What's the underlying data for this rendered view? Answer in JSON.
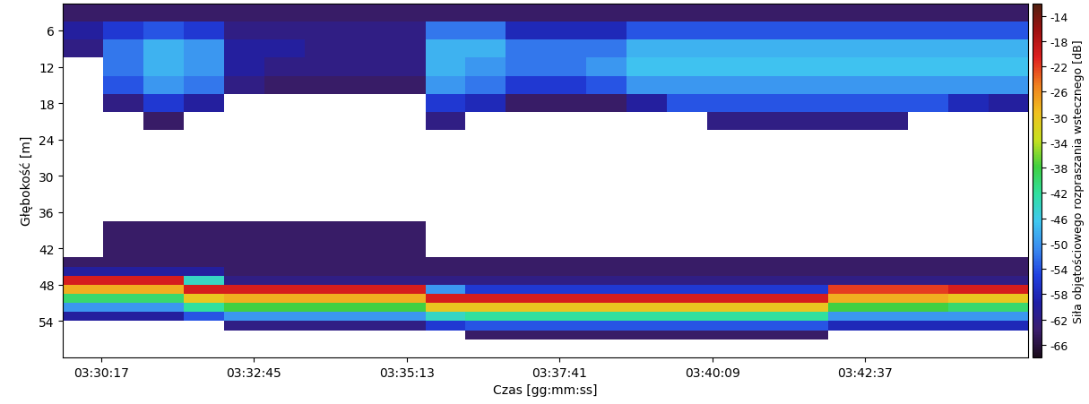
{
  "chart_data": {
    "type": "heatmap",
    "xlabel": "Czas [gg:mm:ss]",
    "ylabel": "Głębokość [m]",
    "colorbar_label": "Siła objętościowego rozpraszania wstecznego [dB]",
    "xlim": [
      12580,
      13515
    ],
    "ylim": [
      60,
      1.5
    ],
    "xticks": [
      {
        "value": 12617,
        "label": "03:30:17"
      },
      {
        "value": 12765,
        "label": "03:32:45"
      },
      {
        "value": 12913,
        "label": "03:35:13"
      },
      {
        "value": 13061,
        "label": "03:37:41"
      },
      {
        "value": 13209,
        "label": "03:40:09"
      },
      {
        "value": 13357,
        "label": "03:42:37"
      }
    ],
    "yticks": [
      6,
      12,
      18,
      24,
      30,
      36,
      42,
      48,
      54
    ],
    "colorbar_range": [
      -68,
      -12
    ],
    "colorbar_ticks": [
      -14,
      -18,
      -22,
      -26,
      -30,
      -34,
      -38,
      -42,
      -46,
      -50,
      -54,
      -58,
      -62,
      -66
    ],
    "x_edges": [
      12580,
      12619,
      12658,
      12697,
      12736,
      12775,
      12814,
      12853,
      12892,
      12931,
      12970,
      13009,
      13048,
      13087,
      13126,
      13165,
      13204,
      13243,
      13282,
      13321,
      13360,
      13399,
      13438,
      13477,
      13515
    ],
    "y_edges": [
      1.5,
      4.5,
      7.5,
      10.5,
      13.5,
      16.5,
      19.5,
      22.5,
      25.5,
      28.5,
      31.5,
      34.5,
      37.5,
      40.5,
      43.5,
      45,
      46.5,
      48,
      49.5,
      51,
      52.5,
      54,
      55.5,
      57,
      60
    ],
    "cells": [
      [
        -64,
        -64,
        -64,
        -64,
        -64,
        -64,
        -64,
        -64,
        -64,
        -64,
        -64,
        -64,
        -64,
        -64,
        -64,
        -64,
        -64,
        -64,
        -64,
        -64,
        -64,
        -64,
        -64,
        -64
      ],
      [
        -60,
        -56,
        -54,
        -56,
        -62,
        -62,
        -62,
        -62,
        -62,
        -52,
        -52,
        -58,
        -58,
        -58,
        -54,
        -54,
        -54,
        -54,
        -54,
        -54,
        -54,
        -54,
        -54,
        -54
      ],
      [
        -62,
        -52,
        -48,
        -50,
        -60,
        -60,
        -62,
        -62,
        -62,
        -48,
        -48,
        -52,
        -52,
        -52,
        -48,
        -48,
        -48,
        -48,
        -48,
        -48,
        -48,
        -48,
        -48,
        -48
      ],
      [
        null,
        -52,
        -48,
        -50,
        -60,
        -62,
        -62,
        -62,
        -62,
        -48,
        -50,
        -52,
        -52,
        -50,
        -47,
        -47,
        -47,
        -47,
        -47,
        -47,
        -47,
        -47,
        -47,
        -47
      ],
      [
        null,
        -54,
        -50,
        -52,
        -62,
        -64,
        -64,
        -64,
        -64,
        -50,
        -52,
        -56,
        -56,
        -54,
        -50,
        -50,
        -50,
        -50,
        -50,
        -50,
        -50,
        -50,
        -50,
        -50
      ],
      [
        null,
        -62,
        -56,
        -60,
        null,
        null,
        null,
        null,
        null,
        -56,
        -58,
        -64,
        -64,
        -64,
        -60,
        -54,
        -54,
        -54,
        -54,
        -54,
        -54,
        -54,
        -58,
        -60
      ],
      [
        null,
        null,
        -64,
        null,
        null,
        null,
        null,
        null,
        null,
        -62,
        null,
        null,
        null,
        null,
        null,
        null,
        -62,
        -62,
        -62,
        -62,
        -62,
        null,
        null,
        null
      ],
      [
        null,
        null,
        null,
        null,
        null,
        null,
        null,
        null,
        null,
        null,
        null,
        null,
        null,
        null,
        null,
        null,
        null,
        null,
        null,
        null,
        null,
        null,
        null,
        null
      ],
      [
        null,
        null,
        null,
        null,
        null,
        null,
        null,
        null,
        null,
        null,
        null,
        null,
        null,
        null,
        null,
        null,
        null,
        null,
        null,
        null,
        null,
        null,
        null,
        null
      ],
      [
        null,
        null,
        null,
        null,
        null,
        null,
        null,
        null,
        null,
        null,
        null,
        null,
        null,
        null,
        null,
        null,
        null,
        null,
        null,
        null,
        null,
        null,
        null,
        null
      ],
      [
        null,
        null,
        null,
        null,
        null,
        null,
        null,
        null,
        null,
        null,
        null,
        null,
        null,
        null,
        null,
        null,
        null,
        null,
        null,
        null,
        null,
        null,
        null,
        null
      ],
      [
        null,
        null,
        null,
        null,
        null,
        null,
        null,
        null,
        null,
        null,
        null,
        null,
        null,
        null,
        null,
        null,
        null,
        null,
        null,
        null,
        null,
        null,
        null,
        null
      ],
      [
        null,
        -64,
        -64,
        -64,
        -64,
        -64,
        -64,
        -64,
        -64,
        null,
        null,
        null,
        null,
        null,
        null,
        null,
        null,
        null,
        null,
        null,
        null,
        null,
        null,
        null
      ],
      [
        null,
        -64,
        -64,
        -64,
        -64,
        -64,
        -64,
        -64,
        -64,
        null,
        null,
        null,
        null,
        null,
        null,
        null,
        null,
        null,
        null,
        null,
        null,
        null,
        null,
        null
      ],
      [
        -64,
        -64,
        -64,
        -64,
        -64,
        -64,
        -64,
        -64,
        -64,
        -64,
        -64,
        -64,
        -64,
        -64,
        -64,
        -64,
        -64,
        -64,
        -64,
        -64,
        -64,
        -64,
        -64,
        -64
      ],
      [
        -60,
        -60,
        -60,
        -60,
        -64,
        -64,
        -64,
        -64,
        -64,
        -64,
        -64,
        -64,
        -64,
        -64,
        -64,
        -64,
        -64,
        -64,
        -64,
        -64,
        -64,
        -64,
        -64,
        -64
      ],
      [
        -20,
        -20,
        -20,
        -44,
        -62,
        -62,
        -62,
        -62,
        -62,
        -62,
        -62,
        -62,
        -62,
        -62,
        -62,
        -62,
        -62,
        -62,
        -62,
        -62,
        -62,
        -62,
        -62,
        -62
      ],
      [
        -28,
        -28,
        -28,
        -20,
        -20,
        -20,
        -20,
        -20,
        -20,
        -50,
        -56,
        -56,
        -56,
        -56,
        -56,
        -56,
        -56,
        -56,
        -56,
        -22,
        -22,
        -22,
        -20,
        -20
      ],
      [
        -40,
        -40,
        -40,
        -30,
        -28,
        -28,
        -28,
        -28,
        -28,
        -20,
        -20,
        -20,
        -20,
        -20,
        -20,
        -20,
        -20,
        -20,
        -20,
        -28,
        -28,
        -28,
        -30,
        -30
      ],
      [
        -50,
        -50,
        -50,
        -42,
        -38,
        -38,
        -38,
        -38,
        -38,
        -30,
        -30,
        -30,
        -30,
        -30,
        -30,
        -30,
        -30,
        -30,
        -30,
        -38,
        -38,
        -38,
        -40,
        -40
      ],
      [
        -60,
        -60,
        -60,
        -54,
        -50,
        -50,
        -50,
        -50,
        -50,
        -44,
        -42,
        -42,
        -42,
        -42,
        -42,
        -42,
        -42,
        -42,
        -42,
        -50,
        -50,
        -50,
        -50,
        -50
      ],
      [
        null,
        null,
        null,
        null,
        -62,
        -62,
        -62,
        -62,
        -62,
        -56,
        -54,
        -54,
        -54,
        -54,
        -54,
        -54,
        -54,
        -54,
        -54,
        -58,
        -58,
        -58,
        -58,
        -58
      ],
      [
        null,
        null,
        null,
        null,
        null,
        null,
        null,
        null,
        null,
        null,
        -64,
        -64,
        -64,
        -64,
        -64,
        -64,
        -64,
        -64,
        -64,
        null,
        null,
        null,
        null,
        null
      ],
      [
        null,
        null,
        null,
        null,
        null,
        null,
        null,
        null,
        null,
        null,
        null,
        null,
        null,
        null,
        null,
        null,
        null,
        null,
        null,
        null,
        null,
        null,
        null,
        null
      ]
    ]
  }
}
